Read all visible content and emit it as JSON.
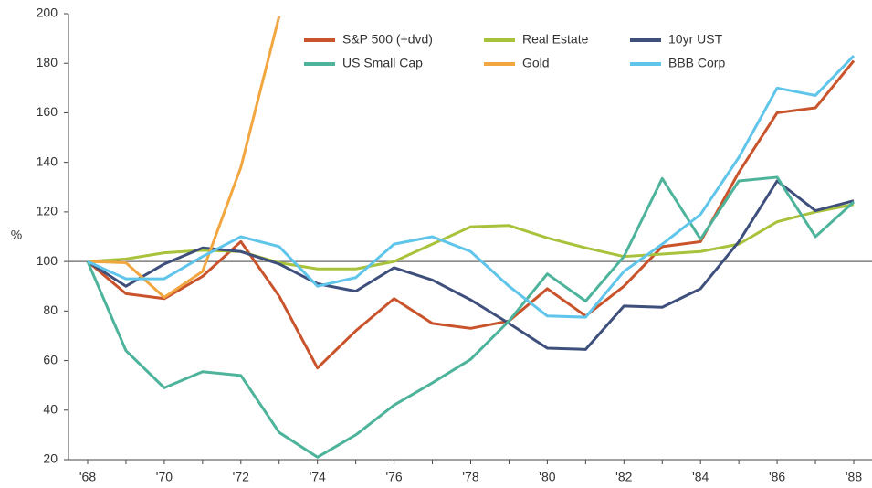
{
  "chart_data": {
    "type": "line",
    "ylabel": "%",
    "categories": [
      "'68",
      null,
      "'70",
      null,
      "'72",
      null,
      "'74",
      null,
      "'76",
      null,
      "'78",
      null,
      "'80",
      null,
      "'82",
      null,
      "'84",
      null,
      "'86",
      null,
      "'88"
    ],
    "series": [
      {
        "name": "S&P 500 (+dvd)",
        "color": "#c9532b",
        "values": [
          100,
          87,
          85,
          94,
          108,
          86,
          57,
          72,
          85,
          75,
          73,
          76,
          89,
          78,
          90,
          106,
          108,
          136,
          160,
          162,
          181
        ]
      },
      {
        "name": "Real Estate",
        "color": "#a9c23b",
        "values": [
          100,
          101,
          103.5,
          104.5,
          104,
          99.5,
          97,
          97,
          100,
          107,
          114,
          114.5,
          109.5,
          105.5,
          102,
          103,
          104,
          107,
          116,
          120,
          123
        ]
      },
      {
        "name": "10yr UST",
        "color": "#3e4f7c",
        "values": [
          100,
          90,
          99,
          105.5,
          104,
          99,
          91,
          88,
          97.5,
          92.5,
          84.5,
          75,
          65,
          64.5,
          82,
          81.5,
          89,
          108,
          132.5,
          120.5,
          124.5
        ]
      },
      {
        "name": "US Small Cap",
        "color": "#4db49b",
        "values": [
          100,
          64,
          49,
          55.5,
          54,
          31,
          21,
          30,
          42,
          51,
          60.5,
          76,
          95,
          84,
          102,
          133.5,
          109,
          132.5,
          134,
          110,
          124
        ]
      },
      {
        "name": "Gold",
        "color": "#f2a640",
        "values": [
          100,
          99.5,
          85.5,
          96,
          138,
          199,
          null,
          null,
          null,
          null,
          null,
          null,
          null,
          null,
          null,
          null,
          null,
          null,
          null,
          null,
          null
        ]
      },
      {
        "name": "BBB Corp",
        "color": "#60c5ea",
        "values": [
          100,
          93,
          93,
          102,
          110,
          106,
          90,
          93.5,
          107,
          110,
          104,
          90,
          78,
          77.5,
          96,
          107,
          119,
          142,
          170,
          167,
          183
        ]
      }
    ],
    "ylim": [
      20,
      200
    ],
    "yticks": [
      20,
      40,
      60,
      80,
      100,
      120,
      140,
      160,
      180,
      200
    ],
    "reference_line": 100,
    "grid": false,
    "legend": "top"
  }
}
